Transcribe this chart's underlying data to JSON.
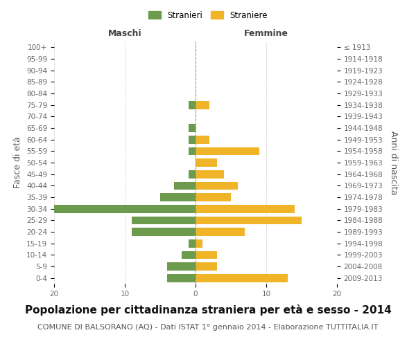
{
  "age_groups": [
    "100+",
    "95-99",
    "90-94",
    "85-89",
    "80-84",
    "75-79",
    "70-74",
    "65-69",
    "60-64",
    "55-59",
    "50-54",
    "45-49",
    "40-44",
    "35-39",
    "30-34",
    "25-29",
    "20-24",
    "15-19",
    "10-14",
    "5-9",
    "0-4"
  ],
  "birth_years": [
    "≤ 1913",
    "1914-1918",
    "1919-1923",
    "1924-1928",
    "1929-1933",
    "1934-1938",
    "1939-1943",
    "1944-1948",
    "1949-1953",
    "1954-1958",
    "1959-1963",
    "1964-1968",
    "1969-1973",
    "1974-1978",
    "1979-1983",
    "1984-1988",
    "1989-1993",
    "1994-1998",
    "1999-2003",
    "2004-2008",
    "2009-2013"
  ],
  "maschi": [
    0,
    0,
    0,
    0,
    0,
    1,
    0,
    1,
    1,
    1,
    0,
    1,
    3,
    5,
    20,
    9,
    9,
    1,
    2,
    4,
    4
  ],
  "femmine": [
    0,
    0,
    0,
    0,
    0,
    2,
    0,
    0,
    2,
    9,
    3,
    4,
    6,
    5,
    14,
    15,
    7,
    1,
    3,
    3,
    13
  ],
  "maschi_color": "#6d9b4e",
  "femmine_color": "#f0b429",
  "title": "Popolazione per cittadinanza straniera per età e sesso - 2014",
  "subtitle": "COMUNE DI BALSORANO (AQ) - Dati ISTAT 1° gennaio 2014 - Elaborazione TUTTITALIA.IT",
  "ylabel": "Fasce di età",
  "ylabel_right": "Anni di nascita",
  "xlabel_left": "Maschi",
  "xlabel_right": "Femmine",
  "legend_maschi": "Stranieri",
  "legend_femmine": "Straniere",
  "xlim": 20,
  "background_color": "#ffffff",
  "grid_color": "#cccccc",
  "bar_height": 0.7,
  "title_fontsize": 11,
  "subtitle_fontsize": 8,
  "tick_fontsize": 7.5,
  "label_fontsize": 9
}
